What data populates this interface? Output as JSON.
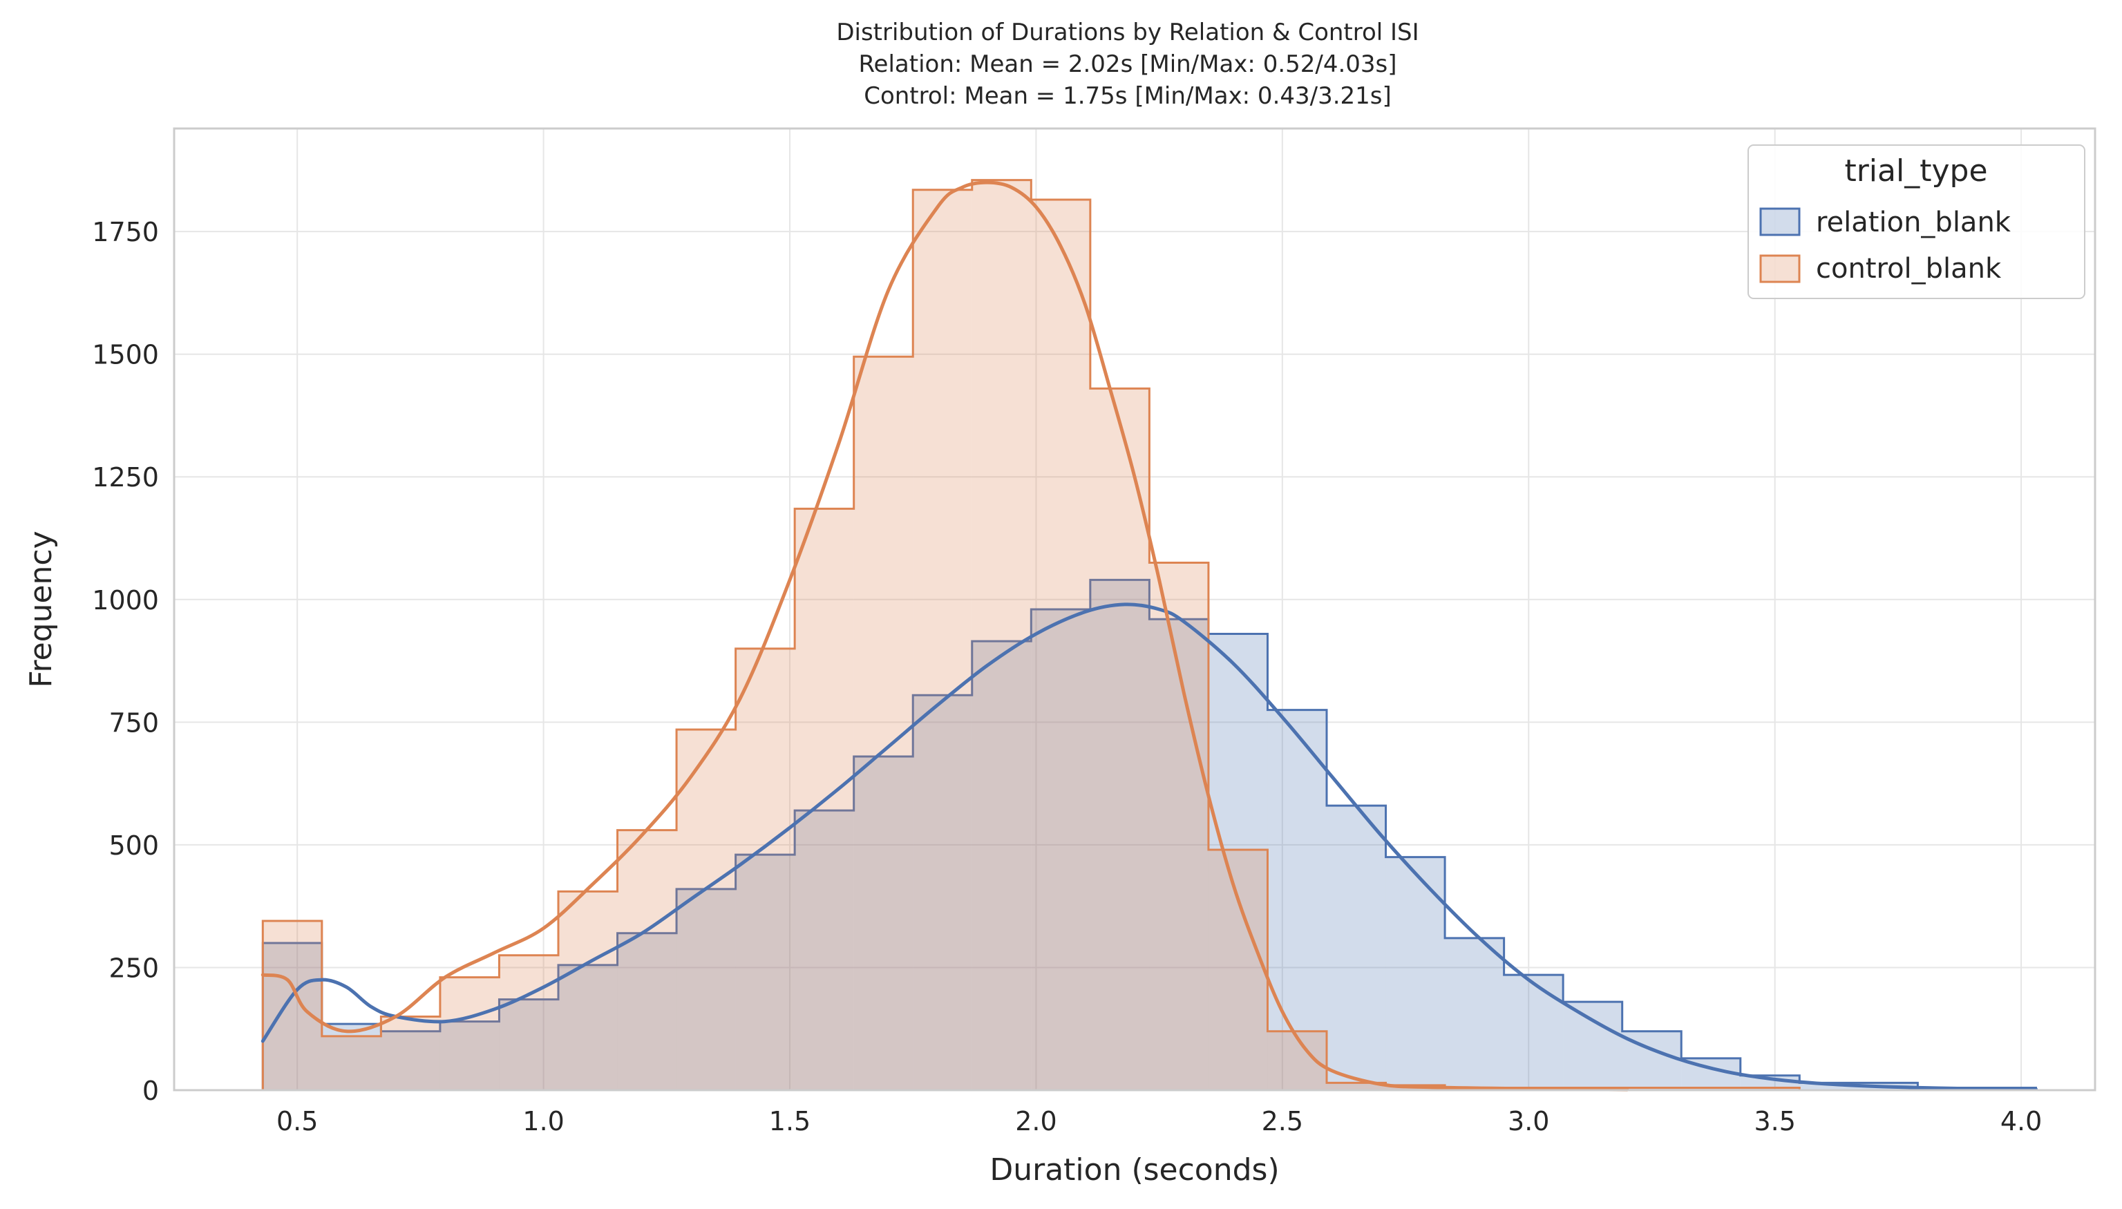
{
  "chart_data": {
    "type": "histogram",
    "title_lines": [
      "Distribution of Durations by Relation & Control ISI",
      "Relation: Mean = 2.02s [Min/Max: 0.52/4.03s]",
      "Control: Mean = 1.75s [Min/Max: 0.43/3.21s]"
    ],
    "xlabel": "Duration (seconds)",
    "ylabel": "Frequency",
    "xlim": [
      0.25,
      4.15
    ],
    "ylim": [
      0,
      1960
    ],
    "x_ticks": [
      0.5,
      1.0,
      1.5,
      2.0,
      2.5,
      3.0,
      3.5,
      4.0
    ],
    "x_tick_labels": [
      "0.5",
      "1.0",
      "1.5",
      "2.0",
      "2.5",
      "3.0",
      "3.5",
      "4.0"
    ],
    "y_ticks": [
      0,
      250,
      500,
      750,
      1000,
      1250,
      1500,
      1750
    ],
    "y_tick_labels": [
      "0",
      "250",
      "500",
      "750",
      "1000",
      "1250",
      "1500",
      "1750"
    ],
    "grid": true,
    "legend_title": "trial_type",
    "legend_position": "top-right",
    "bin_start": 0.43,
    "bin_width": 0.12,
    "series": [
      {
        "name": "relation_blank",
        "color": "#4c72b0",
        "fill": "#4c72b0",
        "fill_opacity": 0.25,
        "counts": [
          300,
          135,
          120,
          140,
          185,
          255,
          320,
          410,
          480,
          570,
          680,
          805,
          915,
          980,
          1040,
          960,
          930,
          775,
          580,
          475,
          310,
          235,
          180,
          120,
          65,
          30,
          15,
          15,
          5,
          5
        ],
        "kde_x": [
          0.43,
          0.5,
          0.55,
          0.6,
          0.65,
          0.7,
          0.8,
          0.9,
          1.0,
          1.1,
          1.2,
          1.3,
          1.4,
          1.5,
          1.6,
          1.7,
          1.8,
          1.9,
          2.0,
          2.1,
          2.18,
          2.25,
          2.3,
          2.4,
          2.5,
          2.6,
          2.7,
          2.8,
          2.9,
          3.0,
          3.1,
          3.2,
          3.3,
          3.4,
          3.5,
          3.6,
          3.7,
          3.8,
          3.9,
          4.03
        ],
        "kde_y": [
          100,
          205,
          225,
          210,
          170,
          150,
          140,
          165,
          210,
          265,
          320,
          390,
          460,
          535,
          615,
          700,
          785,
          865,
          930,
          975,
          990,
          980,
          955,
          870,
          760,
          640,
          520,
          410,
          310,
          225,
          160,
          105,
          65,
          38,
          22,
          13,
          8,
          5,
          3,
          2
        ]
      },
      {
        "name": "control_blank",
        "color": "#dd8452",
        "fill": "#dd8452",
        "fill_opacity": 0.25,
        "counts": [
          345,
          110,
          150,
          230,
          275,
          405,
          530,
          735,
          900,
          1185,
          1495,
          1835,
          1855,
          1815,
          1430,
          1075,
          490,
          120,
          15,
          10,
          5,
          5,
          5,
          5,
          5,
          5,
          0,
          0,
          0,
          0
        ],
        "kde_x": [
          0.43,
          0.48,
          0.52,
          0.6,
          0.7,
          0.8,
          0.9,
          1.0,
          1.1,
          1.2,
          1.3,
          1.4,
          1.5,
          1.6,
          1.7,
          1.8,
          1.85,
          1.9,
          1.95,
          2.0,
          2.05,
          2.1,
          2.15,
          2.2,
          2.25,
          2.3,
          2.35,
          2.4,
          2.45,
          2.5,
          2.55,
          2.6,
          2.7,
          2.8,
          3.0,
          3.2
        ],
        "kde_y": [
          235,
          225,
          160,
          120,
          150,
          230,
          280,
          330,
          420,
          520,
          640,
          800,
          1040,
          1320,
          1630,
          1800,
          1840,
          1850,
          1840,
          1800,
          1720,
          1600,
          1430,
          1250,
          1040,
          810,
          600,
          420,
          280,
          160,
          80,
          40,
          12,
          6,
          3,
          1
        ]
      }
    ]
  }
}
